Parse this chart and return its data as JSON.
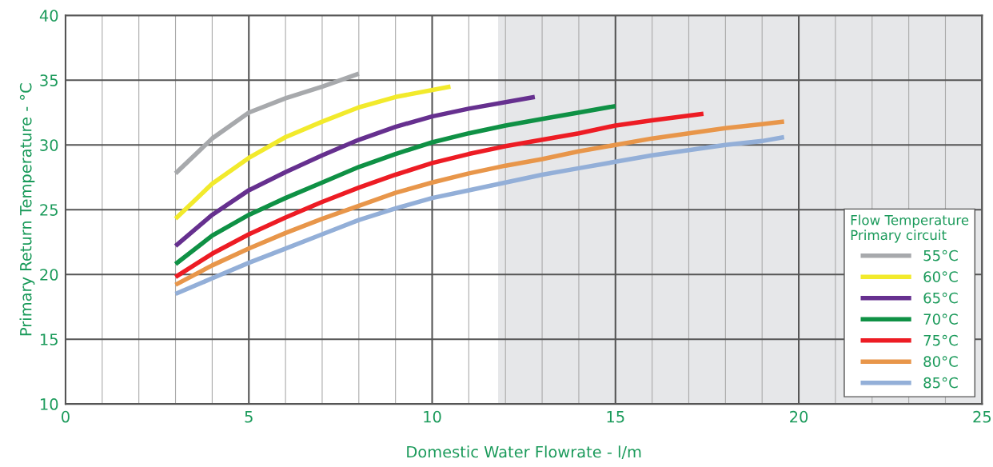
{
  "chart_data": {
    "type": "line",
    "xlabel": "Domestic Water Flowrate - l/m",
    "ylabel": "Primary Return Temperature - °C",
    "legend_title": "Flow Temperature\nPrimary circuit",
    "xlim": [
      0,
      25
    ],
    "ylim": [
      10,
      40
    ],
    "xticks": [
      0,
      {
        "value": 1,
        "label": null
      },
      {
        "value": 2,
        "label": null
      },
      {
        "value": 3,
        "label": null
      },
      {
        "value": 4,
        "label": null
      },
      5,
      {
        "value": 6,
        "label": null
      },
      {
        "value": 7,
        "label": null
      },
      {
        "value": 8,
        "label": null
      },
      {
        "value": 9,
        "label": null
      },
      10,
      {
        "value": 11,
        "label": null
      },
      {
        "value": 12,
        "label": null
      },
      {
        "value": 13,
        "label": null
      },
      {
        "value": 14,
        "label": null
      },
      15,
      {
        "value": 16,
        "label": null
      },
      {
        "value": 17,
        "label": null
      },
      {
        "value": 18,
        "label": null
      },
      {
        "value": 19,
        "label": null
      },
      20,
      {
        "value": 21,
        "label": null
      },
      {
        "value": 22,
        "label": null
      },
      {
        "value": 23,
        "label": null
      },
      {
        "value": 24,
        "label": null
      },
      25
    ],
    "yticks": [
      10,
      15,
      20,
      25,
      30,
      35,
      40
    ],
    "grid": true,
    "legend": "bottom right",
    "marker": "none",
    "line_style": "solid",
    "bands": [
      {
        "axis": "x",
        "from": 11.8,
        "to": 25,
        "color": "#e6e7e9"
      }
    ],
    "series": [
      {
        "name": "55°C",
        "color": "#a7a9ac",
        "x": [
          3,
          4,
          5,
          6,
          7,
          8
        ],
        "values": [
          27.8,
          30.5,
          32.5,
          33.6,
          34.5,
          35.5
        ]
      },
      {
        "name": "60°C",
        "color": "#f2ea2c",
        "x": [
          3,
          4,
          5,
          6,
          7,
          8,
          9,
          10.5
        ],
        "values": [
          24.3,
          27,
          29,
          30.6,
          31.8,
          32.9,
          33.7,
          34.5
        ]
      },
      {
        "name": "65°C",
        "color": "#66308f",
        "x": [
          3,
          4,
          5,
          6,
          7,
          8,
          9,
          10,
          11,
          12.8
        ],
        "values": [
          22.2,
          24.6,
          26.5,
          27.9,
          29.2,
          30.4,
          31.4,
          32.2,
          32.8,
          33.7
        ]
      },
      {
        "name": "70°C",
        "color": "#0f9145",
        "x": [
          3,
          4,
          5,
          6,
          7,
          8,
          9,
          10,
          11,
          12,
          13,
          14,
          15
        ],
        "values": [
          20.8,
          23,
          24.6,
          25.9,
          27.1,
          28.3,
          29.3,
          30.2,
          30.9,
          31.5,
          32,
          32.5,
          33
        ]
      },
      {
        "name": "75°C",
        "color": "#ed1c24",
        "x": [
          3,
          4,
          5,
          6,
          7,
          8,
          9,
          10,
          11,
          12,
          13,
          14,
          15,
          16,
          17.4
        ],
        "values": [
          19.8,
          21.6,
          23.1,
          24.4,
          25.6,
          26.7,
          27.7,
          28.6,
          29.3,
          29.9,
          30.4,
          30.9,
          31.5,
          31.9,
          32.4
        ]
      },
      {
        "name": "80°C",
        "color": "#e8964a",
        "x": [
          3,
          4,
          5,
          6,
          7,
          8,
          9,
          10,
          11,
          12,
          13,
          14,
          15,
          16,
          17,
          18,
          19,
          19.6
        ],
        "values": [
          19.2,
          20.7,
          22,
          23.2,
          24.3,
          25.3,
          26.3,
          27.1,
          27.8,
          28.4,
          28.9,
          29.5,
          30,
          30.5,
          30.9,
          31.3,
          31.6,
          31.8
        ]
      },
      {
        "name": "85°C",
        "color": "#93afd8",
        "x": [
          3,
          4,
          5,
          6,
          7,
          8,
          9,
          10,
          11,
          12,
          13,
          14,
          15,
          16,
          17,
          18,
          19,
          19.6
        ],
        "values": [
          18.5,
          19.7,
          20.9,
          22,
          23.1,
          24.2,
          25.1,
          25.9,
          26.5,
          27.1,
          27.7,
          28.2,
          28.7,
          29.2,
          29.6,
          30,
          30.3,
          30.6
        ]
      }
    ]
  }
}
